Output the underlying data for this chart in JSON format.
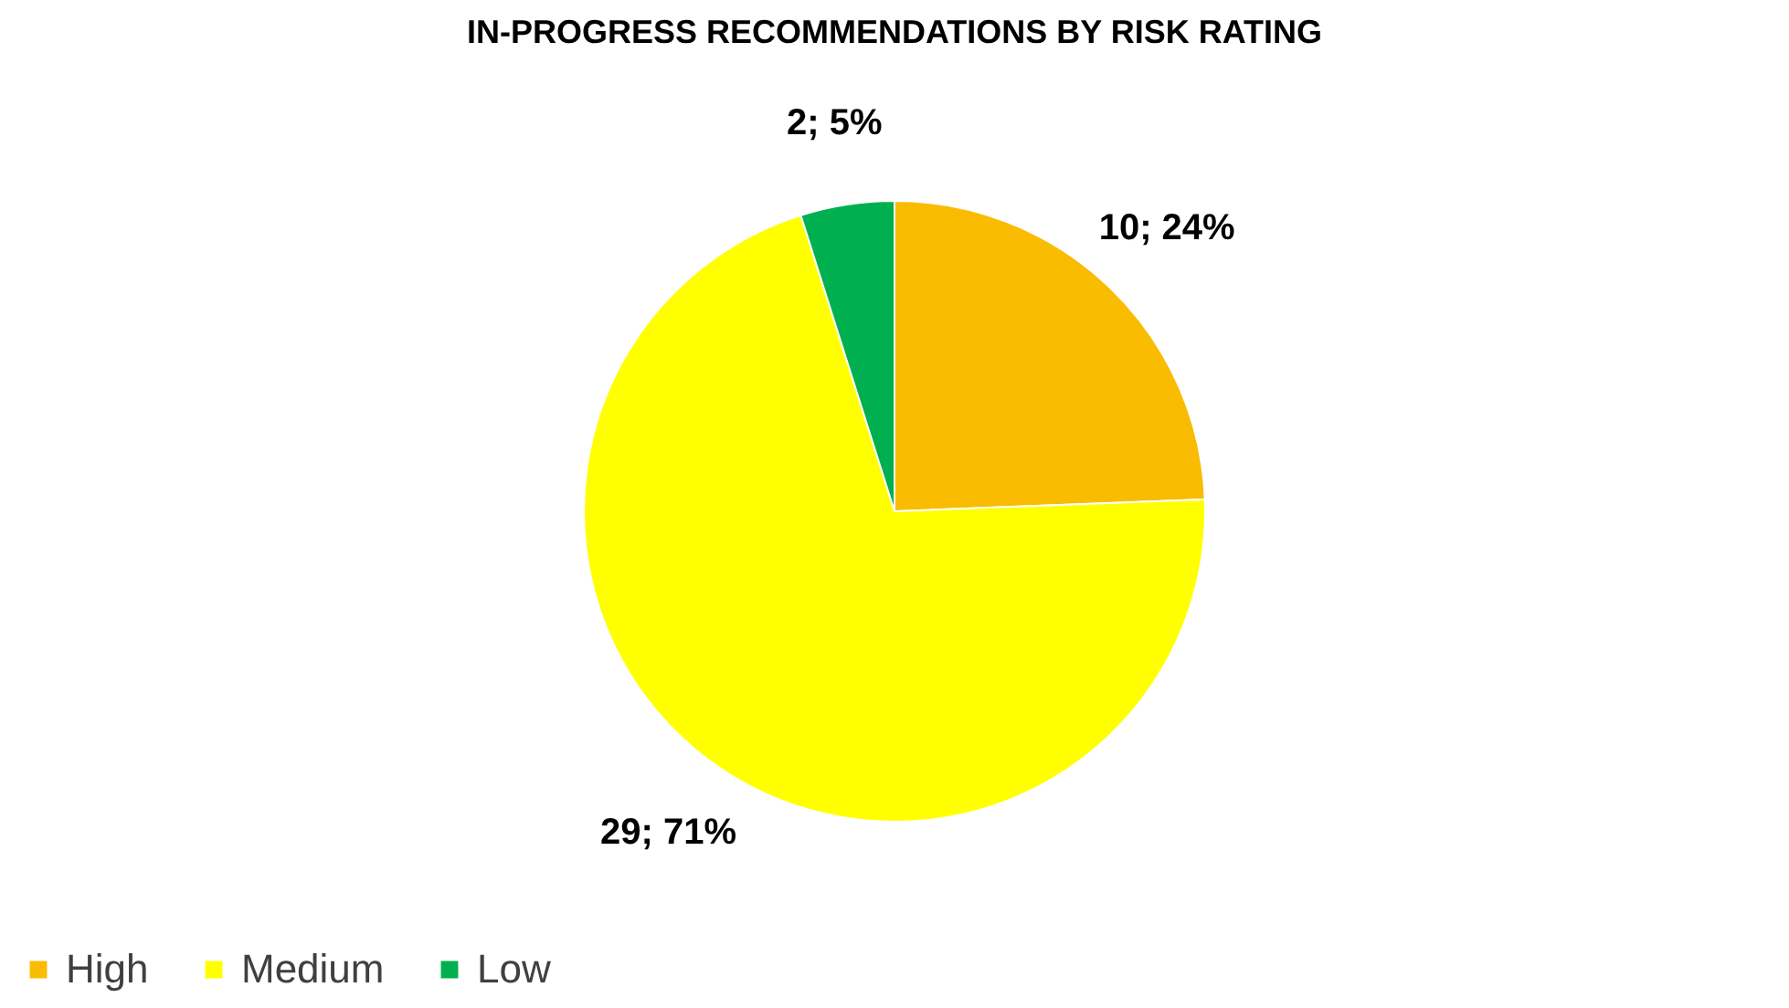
{
  "chart_data": {
    "type": "pie",
    "title": "IN-PROGRESS RECOMMENDATIONS BY RISK RATING",
    "categories": [
      "High",
      "Medium",
      "Low"
    ],
    "values": [
      10,
      29,
      2
    ],
    "colors": [
      "#f9bc00",
      "#ffff00",
      "#00b050"
    ],
    "value_labels": [
      "10; 24%",
      "29; 71%",
      "2; 5%"
    ],
    "legend": "bottom"
  }
}
